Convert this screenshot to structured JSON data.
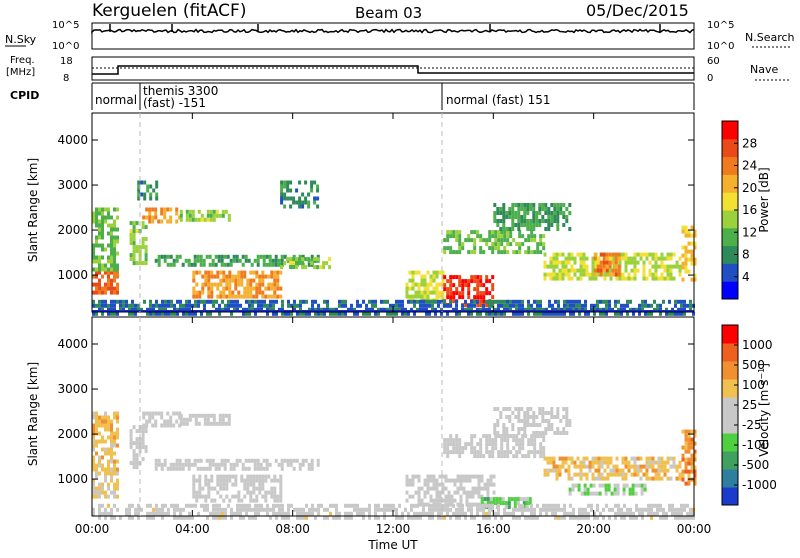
{
  "header": {
    "station": "Kerguelen (fitACF)",
    "beam": "Beam 03",
    "date": "05/Dec/2015"
  },
  "panels": {
    "nsky_label": "N.Sky",
    "nsearch_label": "N.Search",
    "nsky_ticks": [
      "10^5",
      "10^0"
    ],
    "nsearch_ticks": [
      "10^5",
      "10^0"
    ],
    "freq_label_1": "Freq.",
    "freq_label_2": "[MHz]",
    "freq_ticks": [
      "18",
      "8"
    ],
    "nave_label": "Nave",
    "nave_ticks": [
      "60",
      "0"
    ],
    "cpid_label": "CPID",
    "modes": [
      {
        "label": "normal"
      },
      {
        "label": "themis 3300"
      },
      {
        "label": "(fast) -151"
      },
      {
        "label": "normal (fast) 151"
      }
    ]
  },
  "colors": {
    "power": [
      "#0000ff",
      "#1f4fc2",
      "#2f8a5a",
      "#4caf4c",
      "#9bd13a",
      "#f2e033",
      "#f6b030",
      "#f07a1e",
      "#ea4a18",
      "#ff0000"
    ],
    "velocity": [
      "#1a3ccc",
      "#2e7ea0",
      "#3fa060",
      "#4fd040",
      "#c8c8c8",
      "#c8c8c8",
      "#f0c050",
      "#f09030",
      "#ee6020",
      "#ff0000"
    ],
    "ground_scatter": "#c8c8c8"
  },
  "chart_data": [
    {
      "type": "heatmap",
      "title": "Power",
      "ylabel": "Slant Range [km]",
      "ylim": [
        180,
        4600
      ],
      "yticks": [
        "1000",
        "2000",
        "3000",
        "4000"
      ],
      "xlim": [
        0,
        24
      ],
      "colorbar": {
        "label": "Power [dB]",
        "ticks": [
          "4",
          "8",
          "12",
          "16",
          "20",
          "24",
          "28"
        ],
        "range": [
          0,
          32
        ]
      },
      "regions": [
        {
          "t": [
            0.0,
            1.0
          ],
          "r": [
            600,
            1100
          ],
          "v": 26
        },
        {
          "t": [
            0.0,
            1.0
          ],
          "r": [
            1100,
            2500
          ],
          "v": 12
        },
        {
          "t": [
            1.5,
            2.2
          ],
          "r": [
            1300,
            2200
          ],
          "v": 14
        },
        {
          "t": [
            2.0,
            3.5
          ],
          "r": [
            2200,
            2500
          ],
          "v": 22
        },
        {
          "t": [
            3.5,
            5.5
          ],
          "r": [
            2250,
            2450
          ],
          "v": 14
        },
        {
          "t": [
            1.8,
            2.6
          ],
          "r": [
            2700,
            3100
          ],
          "v": 8
        },
        {
          "t": [
            2.5,
            9.0
          ],
          "r": [
            1200,
            1450
          ],
          "v": 10
        },
        {
          "t": [
            4.0,
            7.5
          ],
          "r": [
            500,
            1100
          ],
          "v": 22
        },
        {
          "t": [
            7.5,
            9.5
          ],
          "r": [
            1150,
            1400
          ],
          "v": 14
        },
        {
          "t": [
            7.5,
            9.0
          ],
          "r": [
            2500,
            3100
          ],
          "v": 8
        },
        {
          "t": [
            12.5,
            14.0
          ],
          "r": [
            400,
            1100
          ],
          "v": 16
        },
        {
          "t": [
            14.0,
            16.0
          ],
          "r": [
            350,
            1000
          ],
          "v": 28
        },
        {
          "t": [
            14.0,
            18.0
          ],
          "r": [
            1500,
            2000
          ],
          "v": 12
        },
        {
          "t": [
            16.0,
            19.0
          ],
          "r": [
            2000,
            2600
          ],
          "v": 10
        },
        {
          "t": [
            18.0,
            23.5
          ],
          "r": [
            900,
            1500
          ],
          "v": 16
        },
        {
          "t": [
            20.0,
            21.0
          ],
          "r": [
            1000,
            1500
          ],
          "v": 24
        },
        {
          "t": [
            23.5,
            24.0
          ],
          "r": [
            900,
            2100
          ],
          "v": 20
        },
        {
          "t": [
            0.0,
            24.0
          ],
          "r": [
            180,
            450
          ],
          "v": 6
        }
      ]
    },
    {
      "type": "heatmap",
      "title": "Velocity",
      "ylabel": "Slant Range [km]",
      "ylim": [
        180,
        4600
      ],
      "yticks": [
        "1000",
        "2000",
        "3000",
        "4000"
      ],
      "xlim": [
        0,
        24
      ],
      "xticks": [
        "00:00",
        "04:00",
        "08:00",
        "12:00",
        "16:00",
        "20:00",
        "00:00"
      ],
      "xlabel": "Time UT",
      "colorbar": {
        "label": "Velocity [m s^-1]",
        "ticks": [
          "1000",
          "500",
          "100",
          "25",
          "-25",
          "-100",
          "-500",
          "-1000"
        ],
        "range": [
          -1000,
          1000
        ]
      },
      "regions": [
        {
          "t": [
            0.0,
            1.0
          ],
          "r": [
            600,
            1100
          ],
          "v": 200
        },
        {
          "t": [
            0.0,
            1.0
          ],
          "r": [
            1100,
            2500
          ],
          "v": 300
        },
        {
          "t": [
            1.5,
            2.2
          ],
          "r": [
            1300,
            2200
          ],
          "v": 0
        },
        {
          "t": [
            2.0,
            3.5
          ],
          "r": [
            2200,
            2500
          ],
          "v": 0
        },
        {
          "t": [
            3.5,
            5.5
          ],
          "r": [
            2250,
            2450
          ],
          "v": 0
        },
        {
          "t": [
            2.5,
            9.0
          ],
          "r": [
            1200,
            1450
          ],
          "v": 0
        },
        {
          "t": [
            4.0,
            7.5
          ],
          "r": [
            500,
            1100
          ],
          "v": 0
        },
        {
          "t": [
            12.5,
            16.0
          ],
          "r": [
            400,
            1100
          ],
          "v": 0
        },
        {
          "t": [
            14.0,
            18.0
          ],
          "r": [
            1500,
            2000
          ],
          "v": 0
        },
        {
          "t": [
            16.0,
            19.0
          ],
          "r": [
            2000,
            2600
          ],
          "v": 0
        },
        {
          "t": [
            18.0,
            23.5
          ],
          "r": [
            1000,
            1500
          ],
          "v": 300
        },
        {
          "t": [
            19.0,
            22.0
          ],
          "r": [
            650,
            900
          ],
          "v": -200
        },
        {
          "t": [
            15.5,
            17.5
          ],
          "r": [
            350,
            600
          ],
          "v": -300
        },
        {
          "t": [
            23.5,
            24.0
          ],
          "r": [
            900,
            2100
          ],
          "v": 500
        },
        {
          "t": [
            0.0,
            24.0
          ],
          "r": [
            180,
            450
          ],
          "v": 60
        }
      ]
    }
  ]
}
